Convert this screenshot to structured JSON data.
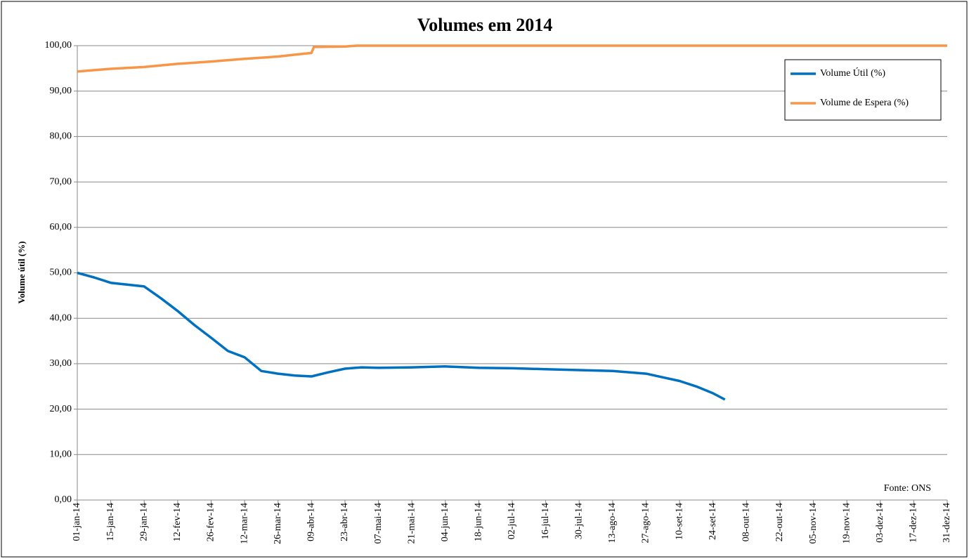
{
  "chart_data": {
    "type": "line",
    "title": "Volumes em 2014",
    "y_label": "Volume útil (%)",
    "annotation": "Fonte: ONS",
    "grid": true,
    "legend": "upper right",
    "xlim": [
      "2014-01-01",
      "2014-12-31"
    ],
    "xticks": [
      {
        "value": "2014-01-01",
        "label": "01-jan-14"
      },
      {
        "value": "2014-01-15",
        "label": "15-jan-14"
      },
      {
        "value": "2014-01-29",
        "label": "29-jan-14"
      },
      {
        "value": "2014-02-12",
        "label": "12-fev-14"
      },
      {
        "value": "2014-02-26",
        "label": "26-fev-14"
      },
      {
        "value": "2014-03-12",
        "label": "12-mar-14"
      },
      {
        "value": "2014-03-26",
        "label": "26-mar-14"
      },
      {
        "value": "2014-04-09",
        "label": "09-abr-14"
      },
      {
        "value": "2014-04-23",
        "label": "23-abr-14"
      },
      {
        "value": "2014-05-07",
        "label": "07-mai-14"
      },
      {
        "value": "2014-05-21",
        "label": "21-mai-14"
      },
      {
        "value": "2014-06-04",
        "label": "04-jun-14"
      },
      {
        "value": "2014-06-18",
        "label": "18-jun-14"
      },
      {
        "value": "2014-07-02",
        "label": "02-jul-14"
      },
      {
        "value": "2014-07-16",
        "label": "16-jul-14"
      },
      {
        "value": "2014-07-30",
        "label": "30-jul-14"
      },
      {
        "value": "2014-08-13",
        "label": "13-ago-14"
      },
      {
        "value": "2014-08-27",
        "label": "27-ago-14"
      },
      {
        "value": "2014-09-10",
        "label": "10-set-14"
      },
      {
        "value": "2014-09-24",
        "label": "24-set-14"
      },
      {
        "value": "2014-10-08",
        "label": "08-out-14"
      },
      {
        "value": "2014-10-22",
        "label": "22-out-14"
      },
      {
        "value": "2014-11-05",
        "label": "05-nov-14"
      },
      {
        "value": "2014-11-19",
        "label": "19-nov-14"
      },
      {
        "value": "2014-12-03",
        "label": "03-dez-14"
      },
      {
        "value": "2014-12-17",
        "label": "17-dez-14"
      },
      {
        "value": "2014-12-31",
        "label": "31-dez-14"
      }
    ],
    "ylim": [
      0,
      100
    ],
    "yticks": [
      {
        "value": 0,
        "label": "0,00"
      },
      {
        "value": 10,
        "label": "10,00"
      },
      {
        "value": 20,
        "label": "20,00"
      },
      {
        "value": 30,
        "label": "30,00"
      },
      {
        "value": 40,
        "label": "40,00"
      },
      {
        "value": 50,
        "label": "50,00"
      },
      {
        "value": 60,
        "label": "60,00"
      },
      {
        "value": 70,
        "label": "70,00"
      },
      {
        "value": 80,
        "label": "80,00"
      },
      {
        "value": 90,
        "label": "90,00"
      },
      {
        "value": 100,
        "label": "100,00"
      }
    ],
    "series": [
      {
        "name": "Volume Útil (%)",
        "color": "#0070c0",
        "x": [
          "2014-01-01",
          "2014-01-08",
          "2014-01-15",
          "2014-01-29",
          "2014-02-05",
          "2014-02-12",
          "2014-02-19",
          "2014-02-26",
          "2014-03-05",
          "2014-03-12",
          "2014-03-19",
          "2014-03-26",
          "2014-04-02",
          "2014-04-09",
          "2014-04-16",
          "2014-04-23",
          "2014-04-30",
          "2014-05-07",
          "2014-05-21",
          "2014-06-04",
          "2014-06-18",
          "2014-07-02",
          "2014-07-16",
          "2014-07-30",
          "2014-08-13",
          "2014-08-27",
          "2014-09-03",
          "2014-09-10",
          "2014-09-17",
          "2014-09-24",
          "2014-09-29"
        ],
        "values": [
          50.0,
          49.0,
          47.8,
          47.0,
          44.4,
          41.6,
          38.5,
          35.7,
          32.8,
          31.4,
          28.4,
          27.8,
          27.4,
          27.2,
          28.1,
          28.9,
          29.2,
          29.1,
          29.2,
          29.4,
          29.1,
          29.0,
          28.8,
          28.6,
          28.4,
          27.8,
          27.0,
          26.2,
          25.0,
          23.5,
          22.1
        ]
      },
      {
        "name": "Volume de Espera (%)",
        "color": "#f79646",
        "x": [
          "2014-01-01",
          "2014-01-08",
          "2014-01-15",
          "2014-01-29",
          "2014-02-12",
          "2014-02-26",
          "2014-03-12",
          "2014-03-26",
          "2014-04-02",
          "2014-04-09",
          "2014-04-10",
          "2014-04-23",
          "2014-04-28",
          "2014-12-31"
        ],
        "values": [
          94.3,
          94.6,
          94.9,
          95.3,
          96.0,
          96.5,
          97.1,
          97.6,
          98.0,
          98.4,
          99.7,
          99.8,
          100.0,
          100.0
        ]
      }
    ]
  }
}
